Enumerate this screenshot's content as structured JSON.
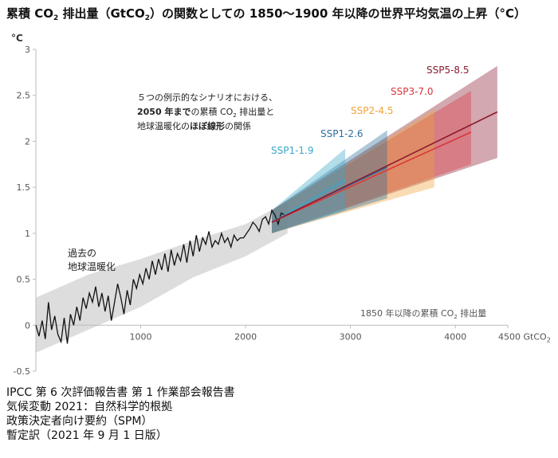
{
  "title": {
    "part1": "累積 CO",
    "sub1": "2",
    "part2": " 排出量（GtCO",
    "sub2": "2",
    "part3": "）の関数としての 1850～1900 年以降の世界平均気温の上昇（°C）"
  },
  "footer": [
    "IPCC 第 6 次評価報告書 第 1 作業部会報告書",
    "気候変動 2021：自然科学的根拠",
    "政策決定者向け要約（SPM）",
    "暫定訳（2021 年 9 月 1 日版）"
  ],
  "chart_data": {
    "type": "line",
    "ylabel": "°C",
    "xlabel": "GtCO2",
    "xlabel_parts": [
      "GtCO",
      "2"
    ],
    "xlim": [
      0,
      4500
    ],
    "ylim": [
      -0.5,
      3
    ],
    "x_ticks": [
      1000,
      2000,
      3000,
      4000,
      4500
    ],
    "y_ticks": [
      -0.5,
      0,
      0.5,
      1,
      1.5,
      2,
      2.5,
      3
    ],
    "x_tick_labels": [
      "1000",
      "2000",
      "3000",
      "4000",
      "4500 GtCO₂"
    ],
    "y_tick_labels": [
      "-0.5",
      "0",
      "0.5",
      "1",
      "1.5",
      "2",
      "2.5",
      "3"
    ],
    "historical": {
      "label_lines": [
        "過去の",
        "地球温暖化"
      ],
      "x": [
        0,
        30,
        60,
        90,
        120,
        150,
        180,
        210,
        240,
        270,
        300,
        330,
        360,
        390,
        420,
        450,
        480,
        510,
        540,
        570,
        600,
        630,
        660,
        690,
        720,
        750,
        780,
        810,
        840,
        870,
        900,
        930,
        960,
        990,
        1020,
        1050,
        1080,
        1110,
        1140,
        1170,
        1200,
        1230,
        1260,
        1290,
        1320,
        1350,
        1380,
        1410,
        1440,
        1470,
        1500,
        1530,
        1560,
        1590,
        1620,
        1650,
        1680,
        1710,
        1740,
        1770,
        1800,
        1830,
        1860,
        1890,
        1920,
        1950,
        1980,
        2010,
        2040,
        2070,
        2100,
        2130,
        2160,
        2190,
        2220,
        2250,
        2280,
        2310,
        2340,
        2370
      ],
      "y": [
        0.0,
        -0.12,
        0.05,
        -0.15,
        0.25,
        -0.05,
        0.1,
        -0.1,
        -0.18,
        0.08,
        -0.2,
        0.12,
        0.0,
        0.2,
        0.05,
        0.3,
        0.18,
        0.35,
        0.25,
        0.42,
        0.2,
        0.35,
        0.15,
        0.32,
        0.05,
        0.25,
        0.45,
        0.3,
        0.12,
        0.38,
        0.22,
        0.5,
        0.4,
        0.55,
        0.45,
        0.62,
        0.5,
        0.7,
        0.55,
        0.72,
        0.6,
        0.78,
        0.58,
        0.82,
        0.65,
        0.78,
        0.7,
        0.88,
        0.68,
        0.92,
        0.75,
        0.98,
        0.8,
        0.95,
        0.88,
        1.02,
        0.85,
        0.92,
        0.88,
        1.0,
        0.9,
        0.95,
        0.85,
        0.98,
        0.92,
        0.95,
        0.95,
        1.0,
        1.05,
        1.12,
        1.08,
        1.02,
        1.15,
        1.18,
        1.1,
        1.25,
        1.2,
        1.1,
        1.22,
        1.2
      ],
      "band_x": [
        0,
        500,
        1000,
        1500,
        2000,
        2400
      ],
      "band_lower": [
        -0.3,
        -0.05,
        0.2,
        0.52,
        0.75,
        1.0
      ],
      "band_upper": [
        0.3,
        0.55,
        0.72,
        0.92,
        1.1,
        1.35
      ]
    },
    "scenarios": [
      {
        "name": "SSP1-1.9",
        "color": "#3aa6c9",
        "x_end": 2950,
        "y_end": 1.58,
        "lower_end": 1.25,
        "upper_end": 1.92
      },
      {
        "name": "SSP1-2.6",
        "color": "#2b6f9c",
        "x_end": 3350,
        "y_end": 1.72,
        "lower_end": 1.38,
        "upper_end": 2.12
      },
      {
        "name": "SSP2-4.5",
        "color": "#f0a33a",
        "x_end": 3800,
        "y_end": 1.92,
        "lower_end": 1.5,
        "upper_end": 2.35
      },
      {
        "name": "SSP3-7.0",
        "color": "#d9363e",
        "x_end": 4150,
        "y_end": 2.1,
        "lower_end": 1.75,
        "upper_end": 2.55
      },
      {
        "name": "SSP5-8.5",
        "color": "#8c1a2f",
        "x_end": 4400,
        "y_end": 2.32,
        "lower_end": 1.82,
        "upper_end": 2.82
      }
    ],
    "scenario_start": {
      "x": 2250,
      "y": 1.12,
      "lower": 1.0,
      "upper": 1.25
    },
    "annotation": {
      "line1": "５つの例示的なシナリオにおける、",
      "line2_bold": "2050 年まで",
      "line2_a": "の累積 CO",
      "line2_sub": "2",
      "line2_b": " 排出量と",
      "line3_a": "地球温暖化の",
      "line3_bold": "ほぼ線形",
      "line3_b": "の関係"
    },
    "x_caption_a": "1850 年以降の累積 CO",
    "x_caption_sub": "2",
    "x_caption_b": " 排出量"
  }
}
